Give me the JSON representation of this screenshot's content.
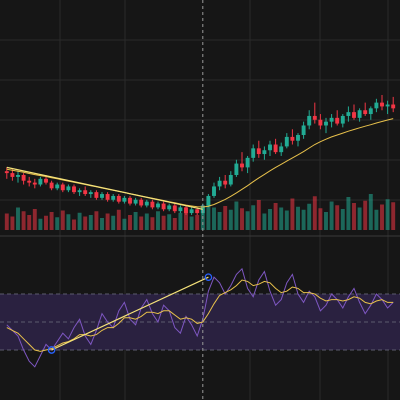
{
  "colors": {
    "background": "#161616",
    "grid": "#2a2a2a",
    "up": "#22ab94",
    "down": "#f23645",
    "ma": "#e8c14b",
    "rsi": "#7e57c2",
    "rsi_band": "#2a2140",
    "rsi_level": "#5c5c6e",
    "trendline": "#f5e27a",
    "crosshair": "#9a9a9a",
    "anchor": "#2962ff"
  },
  "chart_data": [
    {
      "type": "candlestick",
      "panel": "price",
      "ohlc": [
        [
          50,
          52,
          46,
          49
        ],
        [
          49,
          51,
          45,
          47
        ],
        [
          47,
          50,
          44,
          48
        ],
        [
          48,
          49,
          43,
          45
        ],
        [
          45,
          47,
          42,
          44
        ],
        [
          44,
          46,
          41,
          43
        ],
        [
          43,
          47,
          42,
          46
        ],
        [
          46,
          48,
          43,
          44
        ],
        [
          44,
          45,
          40,
          41
        ],
        [
          41,
          44,
          40,
          43
        ],
        [
          43,
          44,
          39,
          40
        ],
        [
          40,
          43,
          39,
          42
        ],
        [
          42,
          43,
          38,
          39
        ],
        [
          39,
          41,
          37,
          40
        ],
        [
          40,
          42,
          37,
          38
        ],
        [
          38,
          40,
          36,
          39
        ],
        [
          39,
          40,
          35,
          36
        ],
        [
          36,
          39,
          35,
          38
        ],
        [
          38,
          39,
          34,
          35
        ],
        [
          35,
          38,
          34,
          37
        ],
        [
          37,
          38,
          33,
          34
        ],
        [
          34,
          37,
          33,
          36
        ],
        [
          36,
          37,
          32,
          33
        ],
        [
          33,
          36,
          32,
          35
        ],
        [
          35,
          36,
          31,
          32
        ],
        [
          32,
          35,
          31,
          34
        ],
        [
          34,
          35,
          30,
          31
        ],
        [
          31,
          34,
          30,
          33
        ],
        [
          33,
          34,
          29,
          30
        ],
        [
          30,
          33,
          29,
          32
        ],
        [
          32,
          33,
          28,
          29
        ],
        [
          29,
          32,
          28,
          31
        ],
        [
          31,
          32,
          27,
          28
        ],
        [
          28,
          31,
          27,
          30
        ],
        [
          30,
          31,
          27,
          28
        ],
        [
          28,
          33,
          27,
          32
        ],
        [
          32,
          38,
          31,
          37
        ],
        [
          37,
          44,
          36,
          42
        ],
        [
          42,
          47,
          40,
          45
        ],
        [
          45,
          48,
          41,
          43
        ],
        [
          43,
          50,
          42,
          48
        ],
        [
          48,
          56,
          47,
          54
        ],
        [
          54,
          60,
          50,
          52
        ],
        [
          52,
          58,
          49,
          57
        ],
        [
          57,
          64,
          55,
          62
        ],
        [
          62,
          66,
          57,
          59
        ],
        [
          59,
          63,
          56,
          61
        ],
        [
          61,
          66,
          58,
          64
        ],
        [
          64,
          67,
          59,
          60
        ],
        [
          60,
          65,
          58,
          63
        ],
        [
          63,
          70,
          62,
          68
        ],
        [
          68,
          72,
          64,
          66
        ],
        [
          66,
          70,
          63,
          69
        ],
        [
          69,
          76,
          67,
          74
        ],
        [
          74,
          82,
          72,
          79
        ],
        [
          79,
          86,
          75,
          77
        ],
        [
          77,
          80,
          72,
          74
        ],
        [
          74,
          78,
          70,
          76
        ],
        [
          76,
          80,
          73,
          78
        ],
        [
          78,
          82,
          74,
          75
        ],
        [
          75,
          80,
          73,
          79
        ],
        [
          79,
          84,
          76,
          81
        ],
        [
          81,
          85,
          77,
          78
        ],
        [
          78,
          83,
          76,
          82
        ],
        [
          82,
          86,
          79,
          80
        ],
        [
          80,
          84,
          77,
          83
        ],
        [
          83,
          88,
          81,
          86
        ],
        [
          86,
          90,
          82,
          84
        ],
        [
          84,
          87,
          80,
          85
        ],
        [
          85,
          89,
          81,
          83
        ]
      ],
      "volume": [
        22,
        18,
        30,
        25,
        20,
        28,
        15,
        19,
        24,
        17,
        26,
        21,
        14,
        23,
        18,
        20,
        25,
        16,
        22,
        19,
        27,
        15,
        20,
        24,
        18,
        22,
        17,
        25,
        19,
        21,
        16,
        23,
        26,
        18,
        20,
        28,
        35,
        30,
        24,
        32,
        27,
        38,
        29,
        25,
        33,
        40,
        22,
        28,
        36,
        30,
        26,
        42,
        31,
        27,
        35,
        45,
        29,
        24,
        38,
        33,
        28,
        44,
        36,
        30,
        39,
        48,
        27,
        34,
        41,
        37
      ],
      "ma": [
        51,
        50.5,
        50,
        49.4,
        48.8,
        48.2,
        47.7,
        47.2,
        46.6,
        46,
        45.4,
        44.8,
        44.2,
        43.6,
        43,
        42.4,
        41.8,
        41.2,
        40.6,
        40,
        39.4,
        38.8,
        38.2,
        37.6,
        37,
        36.4,
        35.8,
        35.2,
        34.6,
        34,
        33.4,
        32.8,
        32.2,
        31.7,
        31.3,
        31.2,
        31.6,
        32.5,
        33.8,
        35.2,
        36.8,
        38.6,
        40.5,
        42.4,
        44.5,
        46.5,
        48.3,
        50.2,
        52,
        53.6,
        55.3,
        57,
        58.6,
        60.3,
        62.2,
        64,
        65.5,
        66.8,
        68,
        69,
        70,
        71,
        71.9,
        72.8,
        73.6,
        74.4,
        75.3,
        76.1,
        76.9,
        77.6
      ],
      "drawn_trendline": {
        "from_bar": 0,
        "from_price": 52,
        "to_bar": 35,
        "to_price": 30
      }
    },
    {
      "type": "line",
      "panel": "oscillator",
      "ylim": [
        0,
        100
      ],
      "levels": [
        30,
        50,
        70
      ],
      "band": [
        30,
        70
      ],
      "fast": [
        48,
        44,
        40,
        30,
        22,
        18,
        26,
        34,
        30,
        36,
        42,
        38,
        46,
        52,
        40,
        34,
        44,
        56,
        50,
        46,
        58,
        64,
        52,
        48,
        60,
        66,
        56,
        50,
        62,
        58,
        46,
        42,
        54,
        48,
        40,
        52,
        72,
        82,
        78,
        70,
        76,
        84,
        88,
        74,
        68,
        80,
        86,
        72,
        62,
        66,
        78,
        84,
        70,
        64,
        72,
        68,
        58,
        62,
        70,
        66,
        60,
        68,
        74,
        64,
        56,
        62,
        70,
        66,
        60,
        64
      ],
      "slow": [
        46,
        44,
        42,
        38,
        34,
        30,
        29,
        30,
        31,
        33,
        35,
        36,
        38,
        41,
        41,
        40,
        41,
        44,
        46,
        46,
        49,
        53,
        53,
        52,
        54,
        57,
        57,
        56,
        58,
        58,
        55,
        52,
        53,
        52,
        49,
        50,
        56,
        63,
        69,
        71,
        73,
        76,
        80,
        79,
        76,
        77,
        79,
        78,
        74,
        71,
        72,
        75,
        74,
        71,
        71,
        70,
        67,
        65,
        66,
        66,
        65,
        66,
        68,
        67,
        64,
        63,
        65,
        66,
        64,
        64
      ],
      "drawn_trendline": {
        "from_bar": 8,
        "from_value": 30,
        "to_bar": 36,
        "to_value": 82
      }
    }
  ],
  "crosshair_bar": 35
}
